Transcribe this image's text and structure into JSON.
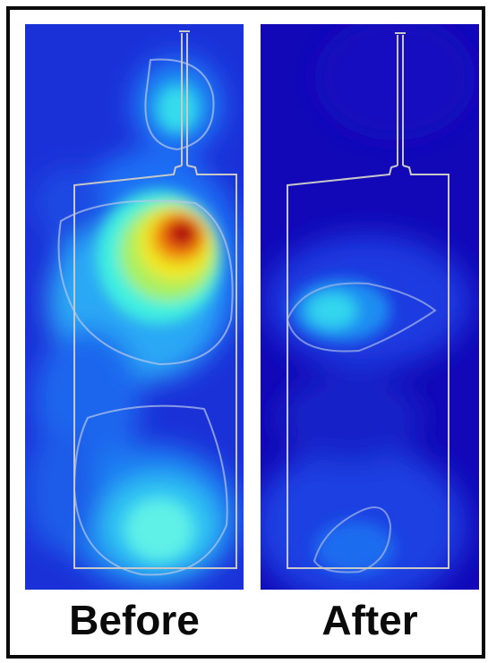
{
  "panels": [
    {
      "label": "Before"
    },
    {
      "label": "After"
    }
  ],
  "colors": {
    "border": "#0a0a0a",
    "background": "#ffffff",
    "heat_low": "#1a2bd0",
    "heat_mid": "#2fd0f0",
    "heat_high": "#e01010",
    "outline": "#c8c8c8"
  }
}
